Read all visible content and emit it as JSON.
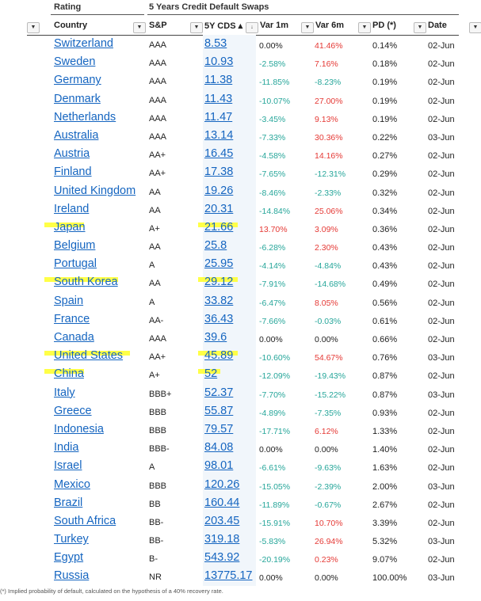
{
  "header_top": {
    "rating": "Rating",
    "cds_group": "5 Years Credit Default Swaps"
  },
  "columns": {
    "country": "Country",
    "sp": "S&P",
    "cds": "5Y CDS ▴",
    "var1m": "Var 1m",
    "var6m": "Var 6m",
    "pd": "PD (*)",
    "date": "Date"
  },
  "dropdown_glyph": "▼",
  "sort_glyph": "↓",
  "highlight_color": "#ffff33",
  "rows": [
    {
      "country": "Switzerland",
      "sp": "AAA",
      "cds": "8.53",
      "v1": "0.00%",
      "v1s": "zero",
      "v6": "41.46%",
      "v6s": "pos",
      "pd": "0.14%",
      "date": "02-Jun",
      "hl": false
    },
    {
      "country": "Sweden",
      "sp": "AAA",
      "cds": "10.93",
      "v1": "-2.58%",
      "v1s": "neg",
      "v6": "7.16%",
      "v6s": "pos",
      "pd": "0.18%",
      "date": "02-Jun",
      "hl": false
    },
    {
      "country": "Germany",
      "sp": "AAA",
      "cds": "11.38",
      "v1": "-11.85%",
      "v1s": "neg",
      "v6": "-8.23%",
      "v6s": "neg",
      "pd": "0.19%",
      "date": "02-Jun",
      "hl": false
    },
    {
      "country": "Denmark",
      "sp": "AAA",
      "cds": "11.43",
      "v1": "-10.07%",
      "v1s": "neg",
      "v6": "27.00%",
      "v6s": "pos",
      "pd": "0.19%",
      "date": "02-Jun",
      "hl": false
    },
    {
      "country": "Netherlands",
      "sp": "AAA",
      "cds": "11.47",
      "v1": "-3.45%",
      "v1s": "neg",
      "v6": "9.13%",
      "v6s": "pos",
      "pd": "0.19%",
      "date": "02-Jun",
      "hl": false
    },
    {
      "country": "Australia",
      "sp": "AAA",
      "cds": "13.14",
      "v1": "-7.33%",
      "v1s": "neg",
      "v6": "30.36%",
      "v6s": "pos",
      "pd": "0.22%",
      "date": "03-Jun",
      "hl": false
    },
    {
      "country": "Austria",
      "sp": "AA+",
      "cds": "16.45",
      "v1": "-4.58%",
      "v1s": "neg",
      "v6": "14.16%",
      "v6s": "pos",
      "pd": "0.27%",
      "date": "02-Jun",
      "hl": false
    },
    {
      "country": "Finland",
      "sp": "AA+",
      "cds": "17.38",
      "v1": "-7.65%",
      "v1s": "neg",
      "v6": "-12.31%",
      "v6s": "neg",
      "pd": "0.29%",
      "date": "02-Jun",
      "hl": false
    },
    {
      "country": "United Kingdom",
      "sp": "AA",
      "cds": "19.26",
      "v1": "-8.46%",
      "v1s": "neg",
      "v6": "-2.33%",
      "v6s": "neg",
      "pd": "0.32%",
      "date": "02-Jun",
      "hl": false
    },
    {
      "country": "Ireland",
      "sp": "AA",
      "cds": "20.31",
      "v1": "-14.84%",
      "v1s": "neg",
      "v6": "25.06%",
      "v6s": "pos",
      "pd": "0.34%",
      "date": "02-Jun",
      "hl": false
    },
    {
      "country": "Japan",
      "sp": "A+",
      "cds": "21.66",
      "v1": "13.70%",
      "v1s": "pos",
      "v6": "3.09%",
      "v6s": "pos",
      "pd": "0.36%",
      "date": "02-Jun",
      "hl": true
    },
    {
      "country": "Belgium",
      "sp": "AA",
      "cds": "25.8",
      "v1": "-6.28%",
      "v1s": "neg",
      "v6": "2.30%",
      "v6s": "pos",
      "pd": "0.43%",
      "date": "02-Jun",
      "hl": false
    },
    {
      "country": "Portugal",
      "sp": "A",
      "cds": "25.95",
      "v1": "-4.14%",
      "v1s": "neg",
      "v6": "-4.84%",
      "v6s": "neg",
      "pd": "0.43%",
      "date": "02-Jun",
      "hl": false
    },
    {
      "country": "South Korea",
      "sp": "AA",
      "cds": "29.12",
      "v1": "-7.91%",
      "v1s": "neg",
      "v6": "-14.68%",
      "v6s": "neg",
      "pd": "0.49%",
      "date": "02-Jun",
      "hl": true
    },
    {
      "country": "Spain",
      "sp": "A",
      "cds": "33.82",
      "v1": "-6.47%",
      "v1s": "neg",
      "v6": "8.05%",
      "v6s": "pos",
      "pd": "0.56%",
      "date": "02-Jun",
      "hl": false
    },
    {
      "country": "France",
      "sp": "AA-",
      "cds": "36.43",
      "v1": "-7.66%",
      "v1s": "neg",
      "v6": "-0.03%",
      "v6s": "neg",
      "pd": "0.61%",
      "date": "02-Jun",
      "hl": false
    },
    {
      "country": "Canada",
      "sp": "AAA",
      "cds": "39.6",
      "v1": "0.00%",
      "v1s": "zero",
      "v6": "0.00%",
      "v6s": "zero",
      "pd": "0.66%",
      "date": "02-Jun",
      "hl": false
    },
    {
      "country": "United States",
      "sp": "AA+",
      "cds": "45.89",
      "v1": "-10.60%",
      "v1s": "neg",
      "v6": "54.67%",
      "v6s": "pos",
      "pd": "0.76%",
      "date": "03-Jun",
      "hl": true
    },
    {
      "country": "China",
      "sp": "A+",
      "cds": "52",
      "v1": "-12.09%",
      "v1s": "neg",
      "v6": "-19.43%",
      "v6s": "neg",
      "pd": "0.87%",
      "date": "02-Jun",
      "hl": true
    },
    {
      "country": "Italy",
      "sp": "BBB+",
      "cds": "52.37",
      "v1": "-7.70%",
      "v1s": "neg",
      "v6": "-15.22%",
      "v6s": "neg",
      "pd": "0.87%",
      "date": "03-Jun",
      "hl": false
    },
    {
      "country": "Greece",
      "sp": "BBB",
      "cds": "55.87",
      "v1": "-4.89%",
      "v1s": "neg",
      "v6": "-7.35%",
      "v6s": "neg",
      "pd": "0.93%",
      "date": "02-Jun",
      "hl": false
    },
    {
      "country": "Indonesia",
      "sp": "BBB",
      "cds": "79.57",
      "v1": "-17.71%",
      "v1s": "neg",
      "v6": "6.12%",
      "v6s": "pos",
      "pd": "1.33%",
      "date": "02-Jun",
      "hl": false
    },
    {
      "country": "India",
      "sp": "BBB-",
      "cds": "84.08",
      "v1": "0.00%",
      "v1s": "zero",
      "v6": "0.00%",
      "v6s": "zero",
      "pd": "1.40%",
      "date": "02-Jun",
      "hl": false
    },
    {
      "country": "Israel",
      "sp": "A",
      "cds": "98.01",
      "v1": "-6.61%",
      "v1s": "neg",
      "v6": "-9.63%",
      "v6s": "neg",
      "pd": "1.63%",
      "date": "02-Jun",
      "hl": false
    },
    {
      "country": "Mexico",
      "sp": "BBB",
      "cds": "120.26",
      "v1": "-15.05%",
      "v1s": "neg",
      "v6": "-2.39%",
      "v6s": "neg",
      "pd": "2.00%",
      "date": "03-Jun",
      "hl": false
    },
    {
      "country": "Brazil",
      "sp": "BB",
      "cds": "160.44",
      "v1": "-11.89%",
      "v1s": "neg",
      "v6": "-0.67%",
      "v6s": "neg",
      "pd": "2.67%",
      "date": "02-Jun",
      "hl": false
    },
    {
      "country": "South Africa",
      "sp": "BB-",
      "cds": "203.45",
      "v1": "-15.91%",
      "v1s": "neg",
      "v6": "10.70%",
      "v6s": "pos",
      "pd": "3.39%",
      "date": "02-Jun",
      "hl": false
    },
    {
      "country": "Turkey",
      "sp": "BB-",
      "cds": "319.18",
      "v1": "-5.83%",
      "v1s": "neg",
      "v6": "26.94%",
      "v6s": "pos",
      "pd": "5.32%",
      "date": "03-Jun",
      "hl": false
    },
    {
      "country": "Egypt",
      "sp": "B-",
      "cds": "543.92",
      "v1": "-20.19%",
      "v1s": "neg",
      "v6": "0.23%",
      "v6s": "pos",
      "pd": "9.07%",
      "date": "02-Jun",
      "hl": false
    },
    {
      "country": "Russia",
      "sp": "NR",
      "cds": "13775.17",
      "v1": "0.00%",
      "v1s": "zero",
      "v6": "0.00%",
      "v6s": "zero",
      "pd": "100.00%",
      "date": "03-Jun",
      "hl": false
    }
  ],
  "footnote": "(*) Implied probability of default, calculated on the hypothesis of a 40% recovery rate."
}
